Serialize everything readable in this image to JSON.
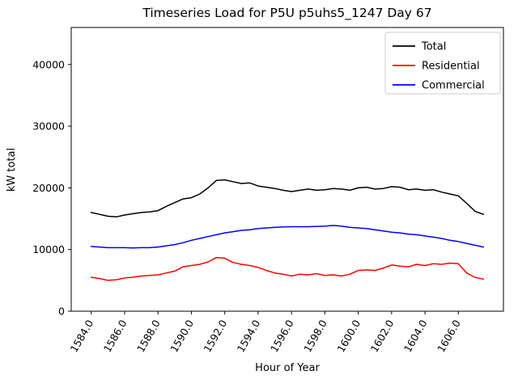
{
  "chart_data": {
    "type": "line",
    "title": "Timeseries Load for P5U p5uhs5_1247  Day 67",
    "xlabel": "Hour of Year",
    "ylabel": "kW total",
    "xlim": [
      1582.8,
      1608.7
    ],
    "ylim": [
      0,
      46000
    ],
    "grid": false,
    "legend_position": "upper right",
    "xticks": [
      1584,
      1586,
      1588,
      1590,
      1592,
      1594,
      1596,
      1598,
      1600,
      1602,
      1604,
      1606
    ],
    "xtick_labels": [
      "1584.0",
      "1586.0",
      "1588.0",
      "1590.0",
      "1592.0",
      "1594.0",
      "1596.0",
      "1598.0",
      "1600.0",
      "1602.0",
      "1604.0",
      "1606.0"
    ],
    "yticks": [
      0,
      10000,
      20000,
      30000,
      40000
    ],
    "ytick_labels": [
      "0",
      "10000",
      "20000",
      "30000",
      "40000"
    ],
    "x": [
      1584,
      1584.5,
      1585,
      1585.5,
      1586,
      1586.5,
      1587,
      1587.5,
      1588,
      1588.5,
      1589,
      1589.5,
      1590,
      1590.5,
      1591,
      1591.5,
      1592,
      1592.5,
      1593,
      1593.5,
      1594,
      1594.5,
      1595,
      1595.5,
      1596,
      1596.5,
      1597,
      1597.5,
      1598,
      1598.5,
      1599,
      1599.5,
      1600,
      1600.5,
      1601,
      1601.5,
      1602,
      1602.5,
      1603,
      1603.5,
      1604,
      1604.5,
      1605,
      1605.5,
      1606,
      1606.5,
      1607,
      1607.5
    ],
    "series": [
      {
        "name": "Total",
        "color": "#000000",
        "values": [
          16000,
          15700,
          15400,
          15300,
          15600,
          15800,
          16000,
          16100,
          16300,
          17000,
          17600,
          18200,
          18400,
          19000,
          20000,
          21200,
          21300,
          21000,
          20700,
          20800,
          20300,
          20100,
          19900,
          19600,
          19400,
          19600,
          19800,
          19600,
          19700,
          19900,
          19800,
          19600,
          20000,
          20100,
          19800,
          19900,
          20200,
          20100,
          19700,
          19800,
          19600,
          19700,
          19300,
          19000,
          18700,
          17500,
          16200,
          15700
        ]
      },
      {
        "name": "Residential",
        "color": "#ff0000",
        "values": [
          5500,
          5300,
          5000,
          5100,
          5400,
          5500,
          5700,
          5800,
          5900,
          6200,
          6500,
          7200,
          7400,
          7600,
          8000,
          8700,
          8600,
          7900,
          7600,
          7400,
          7100,
          6600,
          6200,
          6000,
          5700,
          6000,
          5900,
          6100,
          5800,
          5900,
          5700,
          6000,
          6600,
          6700,
          6600,
          7000,
          7500,
          7300,
          7200,
          7600,
          7400,
          7700,
          7600,
          7800,
          7700,
          6200,
          5500,
          5200
        ]
      },
      {
        "name": "Commercial",
        "color": "#0000ff",
        "values": [
          10500,
          10400,
          10300,
          10300,
          10300,
          10250,
          10300,
          10300,
          10400,
          10600,
          10800,
          11100,
          11500,
          11800,
          12100,
          12400,
          12700,
          12900,
          13100,
          13200,
          13400,
          13500,
          13600,
          13650,
          13700,
          13700,
          13700,
          13750,
          13800,
          13900,
          13800,
          13600,
          13500,
          13400,
          13200,
          13000,
          12800,
          12700,
          12500,
          12400,
          12200,
          12000,
          11800,
          11500,
          11300,
          11000,
          10700,
          10400
        ]
      }
    ]
  }
}
